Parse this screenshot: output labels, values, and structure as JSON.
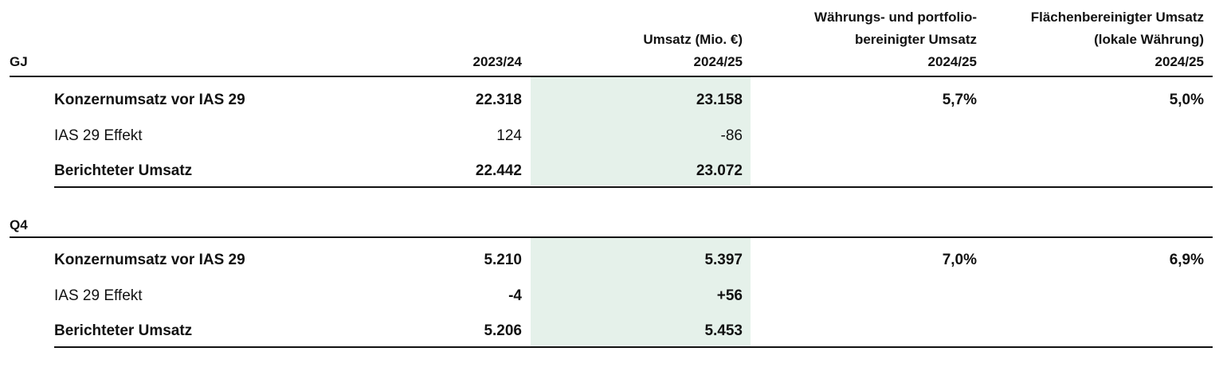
{
  "header": {
    "columns": [
      {
        "lines": [
          "2023/24"
        ]
      },
      {
        "lines": [
          "Umsatz (Mio. €)",
          "2024/25"
        ]
      },
      {
        "lines": [
          "Währungs- und portfolio-",
          "bereinigter Umsatz",
          "2024/25"
        ]
      },
      {
        "lines": [
          "Flächenbereinigter Umsatz",
          "(lokale Währung)",
          "2024/25"
        ]
      }
    ]
  },
  "highlight_column": 1,
  "sections": [
    {
      "label": "GJ",
      "rows": [
        {
          "label": "Konzernumsatz vor IAS 29",
          "label_bold": true,
          "values_bold": true,
          "cells": [
            "22.318",
            "23.158",
            "5,7%",
            "5,0%"
          ]
        },
        {
          "label": "IAS 29 Effekt",
          "label_bold": false,
          "values_bold": false,
          "cells": [
            "124",
            "-86"
          ]
        },
        {
          "label": "Berichteter Umsatz",
          "label_bold": true,
          "values_bold": true,
          "cells": [
            "22.442",
            "23.072"
          ]
        }
      ]
    },
    {
      "label": "Q4",
      "rows": [
        {
          "label": "Konzernumsatz vor IAS 29",
          "label_bold": true,
          "values_bold": true,
          "cells": [
            "5.210",
            "5.397",
            "7,0%",
            "6,9%"
          ]
        },
        {
          "label": "IAS 29 Effekt",
          "label_bold": false,
          "values_bold": true,
          "cells": [
            "-4",
            "+56"
          ]
        },
        {
          "label": "Berichteter Umsatz",
          "label_bold": true,
          "values_bold": true,
          "cells": [
            "5.206",
            "5.453"
          ]
        }
      ]
    }
  ]
}
